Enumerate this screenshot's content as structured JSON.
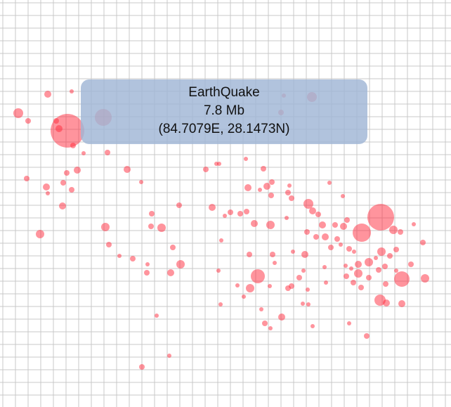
{
  "tooltip": {
    "title": "EarthQuake",
    "magnitude": "7.8 Mb",
    "coordinates": "(84.7079E, 28.1473N)"
  },
  "colors": {
    "grid_line": "#c9c9c9",
    "quake_fill": "#ff2a3c",
    "tooltip_bg": "#a0b6d6"
  }
}
